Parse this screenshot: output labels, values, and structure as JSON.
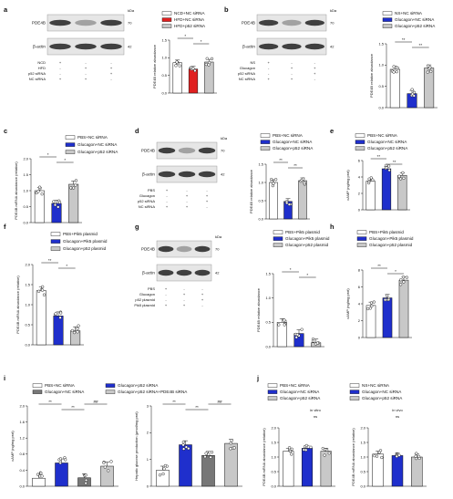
{
  "figure": {
    "panels": [
      {
        "id": "a",
        "letter": "a",
        "legend": [
          "NCD+NC siRNA",
          "HFD+NC siRNA",
          "HFD+p52 siRNA"
        ],
        "ylabel": "PDE4B relative abundance",
        "yticks": [
          "0.0",
          "0.5",
          "1.0",
          "1.5"
        ],
        "stars": [
          "*",
          "*"
        ],
        "blot": {
          "kda": "kDa",
          "bands": [
            "PDE4B",
            "β-actin"
          ],
          "mw": [
            "70",
            "42"
          ],
          "conds": [
            "NCD",
            "HFD",
            "p52 siRNA",
            "NC siRNA"
          ],
          "signs": [
            [
              "+",
              "-",
              "-"
            ],
            [
              "-",
              "+",
              "+"
            ],
            [
              "-",
              "-",
              "+"
            ],
            [
              "+",
              "+",
              "-"
            ]
          ]
        }
      },
      {
        "id": "b",
        "letter": "b",
        "legend": [
          "NS+NC siRNA",
          "Glucagon+NC siRNA",
          "Glucagon+p52 siRNA"
        ],
        "ylabel": "PDE4B relative abundance",
        "yticks": [
          "0.0",
          "0.5",
          "1.0",
          "1.5"
        ],
        "stars": [
          "**",
          "**"
        ],
        "blot": {
          "kda": "kDa",
          "bands": [
            "PDE4B",
            "β-actin"
          ],
          "mw": [
            "70",
            "42"
          ],
          "conds": [
            "NS",
            "Glucagon",
            "p52 siRNA",
            "NC siRNA"
          ],
          "signs": [
            [
              "+",
              "-",
              "-"
            ],
            [
              "-",
              "+",
              "+"
            ],
            [
              "-",
              "-",
              "+"
            ],
            [
              "+",
              "+",
              "-"
            ]
          ]
        }
      },
      {
        "id": "c",
        "letter": "c",
        "legend": [
          "PBS+NC siRNA",
          "Glucagon+NC siRNA",
          "Glucagon+p52 siRNA"
        ],
        "ylabel": "PDE4B mRNA abundance (relative)",
        "yticks": [
          "0.0",
          "0.5",
          "1.0",
          "1.5",
          "2.0"
        ],
        "stars": [
          "*",
          "*"
        ]
      },
      {
        "id": "d",
        "letter": "d",
        "legend": [
          "PBS+NC siRNA",
          "Glucagon+NC siRNA",
          "Glucagon+p52 siRNA"
        ],
        "ylabel": "PDE4B relative abundance",
        "yticks": [
          "0.0",
          "0.5",
          "1.0",
          "1.5"
        ],
        "stars": [
          "**",
          "**"
        ],
        "blot": {
          "kda": "kDa",
          "bands": [
            "PDE4B",
            "β-actin"
          ],
          "mw": [
            "70",
            "42"
          ],
          "conds": [
            "PBS",
            "Glucagon",
            "p52 siRNA",
            "NC siRNA"
          ],
          "signs": [
            [
              "+",
              "-",
              "-"
            ],
            [
              "-",
              "+",
              "+"
            ],
            [
              "-",
              "-",
              "+"
            ],
            [
              "+",
              "+",
              "-"
            ]
          ]
        }
      },
      {
        "id": "e",
        "letter": "e",
        "legend": [
          "PBS+NC siRNA",
          "Glucagon+NC siRNA",
          "Glucagon+p52 siRNA"
        ],
        "ylabel": "cAMP (ng/mg prot)",
        "yticks": [
          "0",
          "2",
          "4",
          "6"
        ],
        "stars": [
          "**",
          "**"
        ]
      },
      {
        "id": "f",
        "letter": "f",
        "legend": [
          "PBS+Pik5 plasmid",
          "Glucagon+Pik5 plasmid",
          "Glucagon+p52 plasmid"
        ],
        "ylabel": "PDE4B mRNA abundance (relative)",
        "yticks": [
          "0.0",
          "0.5",
          "1.0",
          "1.5",
          "2.0"
        ],
        "stars": [
          "**",
          "*"
        ]
      },
      {
        "id": "g",
        "letter": "g",
        "legend": [
          "PBS+Pik5 plasmid",
          "Glucagon+Pik5 plasmid",
          "Glucagon+p52 plasmid"
        ],
        "ylabel": "PDE4B relative abundance",
        "yticks": [
          "0.0",
          "0.5",
          "1.0",
          "1.5"
        ],
        "stars": [
          "*",
          "*"
        ],
        "blot": {
          "kda": "kDa",
          "bands": [
            "PDE4B",
            "β-actin"
          ],
          "mw": [
            "70",
            "42"
          ],
          "conds": [
            "PBS",
            "Glucagon",
            "p52 plasmid",
            "Pik5 plasmid"
          ],
          "signs": [
            [
              "+",
              "-",
              "-"
            ],
            [
              "-",
              "+",
              "+"
            ],
            [
              "-",
              "-",
              "+"
            ],
            [
              "+",
              "+",
              "-"
            ]
          ]
        }
      },
      {
        "id": "h",
        "letter": "h",
        "legend": [
          "PBS+Pik5 plasmid",
          "Glucagon+Pik5 plasmid",
          "Glucagon+p52 plasmid"
        ],
        "ylabel": "cAMP (ng/mg prot)",
        "yticks": [
          "0",
          "2",
          "4",
          "6",
          "8"
        ],
        "stars": [
          "**",
          "*"
        ]
      },
      {
        "id": "i",
        "letter": "i",
        "legend": [
          "PBS+NC siRNA",
          "Glucagon+NC siRNA",
          "Glucagon+p52 siRNA",
          "Glucagon+p52 siRNA+PDE4B siRNA"
        ],
        "ylabel1": "cAMP (ng/mg prot)",
        "yticks1": [
          "0.0",
          "0.4",
          "0.8",
          "1.2",
          "1.6",
          "2.0"
        ],
        "ylabel2": "Hepatic glucose production (μmol/mg prot)",
        "yticks2": [
          "0",
          "1",
          "2",
          "3"
        ],
        "stars": [
          "**",
          "**",
          "##"
        ]
      },
      {
        "id": "j",
        "letter": "j",
        "legend1": [
          "PBS+NC siRNA",
          "Glucagon+NC siRNA",
          "Glucagon+p52 siRNA"
        ],
        "legend2": [
          "NS+NC siRNA",
          "Glucagon+NC siRNA",
          "Glucagon+p52 siRNA"
        ],
        "cond1": "in vitro",
        "cond2": "in vivo",
        "ns": "ns",
        "ylabel1": "PDE4B mRNA abundance (relative)",
        "ylabel2": "PDE4B mRNA abundance (relative)",
        "yticks1": [
          "0.0",
          "0.5",
          "1.0",
          "1.5",
          "2.0"
        ],
        "yticks2": [
          "0.0",
          "0.5",
          "1.0",
          "1.5",
          "2.0"
        ]
      }
    ]
  },
  "chart_data": [
    {
      "panel": "a",
      "type": "bar",
      "categories": [
        "NCD+NC siRNA",
        "HFD+NC siRNA",
        "HFD+p52 siRNA"
      ],
      "values": [
        0.86,
        0.68,
        0.88
      ],
      "ylim": [
        0,
        1.5
      ],
      "colors": [
        "#ffffff",
        "#e02020",
        "#c8c8c8"
      ]
    },
    {
      "panel": "b",
      "type": "bar",
      "categories": [
        "NS+NC siRNA",
        "Glucagon+NC siRNA",
        "Glucagon+p52 siRNA"
      ],
      "values": [
        0.9,
        0.33,
        0.93
      ],
      "ylim": [
        0,
        1.5
      ],
      "colors": [
        "#ffffff",
        "#1f2fcc",
        "#c8c8c8"
      ]
    },
    {
      "panel": "c",
      "type": "bar",
      "categories": [
        "PBS+NC siRNA",
        "Glucagon+NC siRNA",
        "Glucagon+p52 siRNA"
      ],
      "values": [
        1.0,
        0.6,
        1.2
      ],
      "ylim": [
        0,
        2
      ],
      "colors": [
        "#ffffff",
        "#1f2fcc",
        "#c8c8c8"
      ]
    },
    {
      "panel": "d",
      "type": "bar",
      "categories": [
        "PBS+NC siRNA",
        "Glucagon+NC siRNA",
        "Glucagon+p52 siRNA"
      ],
      "values": [
        1.0,
        0.48,
        1.05
      ],
      "ylim": [
        0,
        1.5
      ],
      "colors": [
        "#ffffff",
        "#1f2fcc",
        "#c8c8c8"
      ]
    },
    {
      "panel": "e",
      "type": "bar",
      "categories": [
        "PBS+NC siRNA",
        "Glucagon+NC siRNA",
        "Glucagon+p52 siRNA"
      ],
      "values": [
        3.5,
        5.0,
        4.2
      ],
      "ylim": [
        0,
        6
      ],
      "colors": [
        "#ffffff",
        "#1f2fcc",
        "#c8c8c8"
      ]
    },
    {
      "panel": "f",
      "type": "bar",
      "categories": [
        "PBS+Pik5 plasmid",
        "Glucagon+Pik5 plasmid",
        "Glucagon+p52 plasmid"
      ],
      "values": [
        1.35,
        0.72,
        0.35
      ],
      "ylim": [
        0,
        2
      ],
      "colors": [
        "#ffffff",
        "#1f2fcc",
        "#c8c8c8"
      ]
    },
    {
      "panel": "g",
      "type": "bar",
      "categories": [
        "PBS+Pik5 plasmid",
        "Glucagon+Pik5 plasmid",
        "Glucagon+p52 plasmid"
      ],
      "values": [
        0.5,
        0.27,
        0.08
      ],
      "ylim": [
        0,
        1.5
      ],
      "colors": [
        "#ffffff",
        "#1f2fcc",
        "#c8c8c8"
      ]
    },
    {
      "panel": "h",
      "type": "bar",
      "categories": [
        "PBS+Pik5 plasmid",
        "Glucagon+Pik5 plasmid",
        "Glucagon+p52 plasmid"
      ],
      "values": [
        3.8,
        4.7,
        6.8
      ],
      "ylim": [
        0,
        8
      ],
      "colors": [
        "#ffffff",
        "#1f2fcc",
        "#c8c8c8"
      ]
    },
    {
      "panel": "i1",
      "type": "bar",
      "categories": [
        "PBS+NC siRNA",
        "Glucagon+NC siRNA",
        "Glucagon+p52 siRNA",
        "Glucagon+p52 siRNA+PDE4B siRNA"
      ],
      "values": [
        0.2,
        0.58,
        0.21,
        0.5
      ],
      "ylim": [
        0,
        2
      ],
      "colors": [
        "#ffffff",
        "#1f2fcc",
        "#777777",
        "#c8c8c8"
      ]
    },
    {
      "panel": "i2",
      "type": "bar",
      "categories": [
        "PBS+NC siRNA",
        "Glucagon+NC siRNA",
        "Glucagon+p52 siRNA",
        "Glucagon+p52 siRNA+PDE4B siRNA"
      ],
      "values": [
        0.6,
        1.55,
        1.15,
        1.6
      ],
      "ylim": [
        0,
        3
      ],
      "colors": [
        "#ffffff",
        "#1f2fcc",
        "#777777",
        "#c8c8c8"
      ]
    },
    {
      "panel": "j1",
      "type": "bar",
      "categories": [
        "PBS+NC siRNA",
        "Glucagon+NC siRNA",
        "Glucagon+p52 siRNA"
      ],
      "values": [
        1.2,
        1.3,
        1.2
      ],
      "ylim": [
        0,
        2
      ],
      "colors": [
        "#ffffff",
        "#1f2fcc",
        "#c8c8c8"
      ]
    },
    {
      "panel": "j2",
      "type": "bar",
      "categories": [
        "NS+NC siRNA",
        "Glucagon+NC siRNA",
        "Glucagon+p52 siRNA"
      ],
      "values": [
        1.1,
        1.05,
        1.0
      ],
      "ylim": [
        0,
        2
      ],
      "colors": [
        "#ffffff",
        "#1f2fcc",
        "#c8c8c8"
      ]
    }
  ]
}
